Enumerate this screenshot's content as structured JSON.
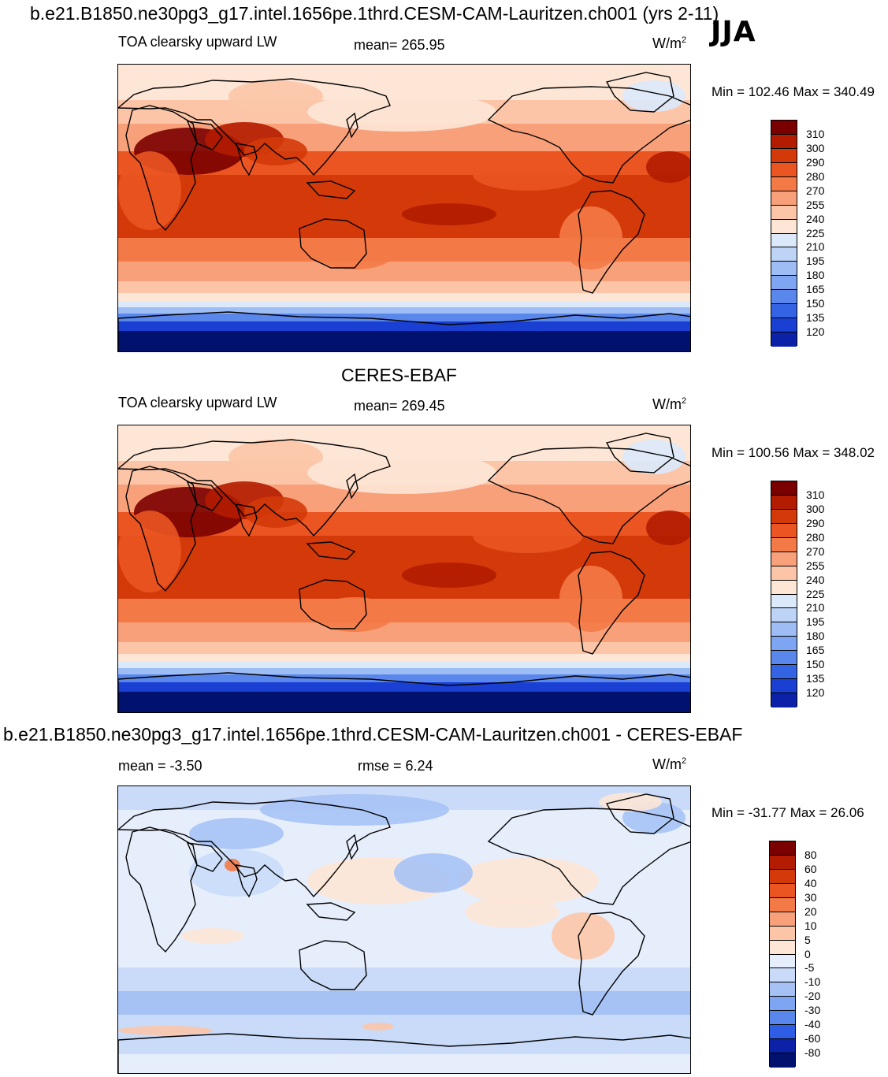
{
  "header": {
    "case_title": "b.e21.B1850.ne30pg3_g17.intel.1656pe.1thrd.CESM-CAM-Lauritzen.ch001 (yrs 2-11)",
    "season": "JJA"
  },
  "colors": {
    "warm": [
      "#7a0000",
      "#b31c00",
      "#d43a09",
      "#ea5522",
      "#f37a47",
      "#f8a07a",
      "#fcc5a8",
      "#fde6d6"
    ],
    "cool": [
      "#dbe9fb",
      "#bdd4f7",
      "#9ebdf5",
      "#7ea5f1",
      "#5a87ec",
      "#3463e4",
      "#1a3fd3",
      "#0b22a8",
      "#00126e"
    ],
    "diff": [
      "#7a0000",
      "#b31c00",
      "#d43a09",
      "#ea5522",
      "#f37a47",
      "#f8a07a",
      "#fcc5a8",
      "#fde6d6",
      "#e6eefc",
      "#c9dbf8",
      "#a6c2f5",
      "#7ea5f1",
      "#5a87ec",
      "#2f5ee6",
      "#1a3fd3",
      "#0b22a8",
      "#00126e"
    ]
  },
  "panels": [
    {
      "id": "model",
      "heading": "",
      "variable": "TOA clearsky upward LW",
      "stat": "mean= 265.95",
      "stat2": "",
      "units_base": "W/m",
      "units_exp": "2",
      "minmax": "Min = 102.46 Max = 340.49",
      "levels": [
        "310",
        "300",
        "290",
        "280",
        "270",
        "255",
        "240",
        "225",
        "210",
        "195",
        "180",
        "165",
        "150",
        "135",
        "120"
      ]
    },
    {
      "id": "obs",
      "heading": "CERES-EBAF",
      "variable": "TOA clearsky upward LW",
      "stat": "mean= 269.45",
      "stat2": "",
      "units_base": "W/m",
      "units_exp": "2",
      "minmax": "Min = 100.56 Max = 348.02",
      "levels": [
        "310",
        "300",
        "290",
        "280",
        "270",
        "255",
        "240",
        "225",
        "210",
        "195",
        "180",
        "165",
        "150",
        "135",
        "120"
      ]
    },
    {
      "id": "diff",
      "heading": "b.e21.B1850.ne30pg3_g17.intel.1656pe.1thrd.CESM-CAM-Lauritzen.ch001 - CERES-EBAF",
      "variable": "",
      "stat": "mean =  -3.50",
      "stat2": "rmse =   6.24",
      "units_base": "W/m",
      "units_exp": "2",
      "minmax": "Min = -31.77 Max =  26.06",
      "levels": [
        "80",
        "60",
        "40",
        "30",
        "20",
        "10",
        "5",
        "0",
        "-5",
        "-10",
        "-20",
        "-30",
        "-40",
        "-60",
        "-80"
      ]
    }
  ]
}
